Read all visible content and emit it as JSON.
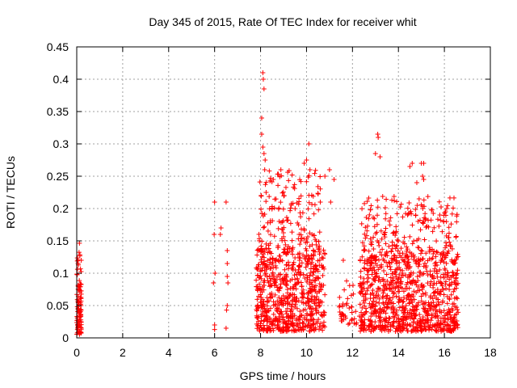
{
  "chart_data": {
    "type": "scatter",
    "title": "Day 345 of 2015, Rate Of TEC Index for receiver whit",
    "xlabel": "GPS time / hours",
    "ylabel": "ROTI / TECUs",
    "xlim": [
      0,
      18
    ],
    "ylim": [
      0,
      0.45
    ],
    "xticks": [
      "0",
      "2",
      "4",
      "6",
      "8",
      "10",
      "12",
      "14",
      "16",
      "18"
    ],
    "yticks": [
      "0",
      "0.05",
      "0.1",
      "0.15",
      "0.2",
      "0.25",
      "0.3",
      "0.35",
      "0.4",
      "0.45"
    ],
    "grid": true,
    "marker": "+",
    "color": "#ff0000",
    "clusters": [
      {
        "x_range": [
          0.0,
          0.2
        ],
        "y_range": [
          0.005,
          0.08
        ],
        "count": 80
      },
      {
        "x_range": [
          0.0,
          0.2
        ],
        "y_range": [
          0.08,
          0.16
        ],
        "count": 20
      },
      {
        "x_range": [
          7.8,
          10.8
        ],
        "y_range": [
          0.01,
          0.14
        ],
        "count": 700
      },
      {
        "x_range": [
          7.9,
          10.6
        ],
        "y_range": [
          0.14,
          0.26
        ],
        "count": 150
      },
      {
        "x_range": [
          12.3,
          16.6
        ],
        "y_range": [
          0.01,
          0.13
        ],
        "count": 900
      },
      {
        "x_range": [
          12.4,
          16.6
        ],
        "y_range": [
          0.13,
          0.22
        ],
        "count": 200
      },
      {
        "x_range": [
          11.4,
          12.2
        ],
        "y_range": [
          0.02,
          0.09
        ],
        "count": 40
      }
    ],
    "points": [
      [
        6.0,
        0.21
      ],
      [
        6.5,
        0.21
      ],
      [
        5.98,
        0.16
      ],
      [
        6.25,
        0.16
      ],
      [
        6.28,
        0.17
      ],
      [
        6.55,
        0.135
      ],
      [
        6.55,
        0.115
      ],
      [
        5.95,
        0.085
      ],
      [
        6.02,
        0.1
      ],
      [
        6.55,
        0.095
      ],
      [
        6.58,
        0.085
      ],
      [
        6.0,
        0.02
      ],
      [
        6.0,
        0.013
      ],
      [
        6.55,
        0.05
      ],
      [
        6.52,
        0.043
      ],
      [
        6.5,
        0.015
      ],
      [
        8.1,
        0.41
      ],
      [
        8.12,
        0.4
      ],
      [
        8.15,
        0.385
      ],
      [
        8.05,
        0.34
      ],
      [
        8.05,
        0.315
      ],
      [
        8.1,
        0.295
      ],
      [
        8.15,
        0.285
      ],
      [
        8.2,
        0.275
      ],
      [
        8.18,
        0.26
      ],
      [
        10.1,
        0.3
      ],
      [
        9.9,
        0.27
      ],
      [
        10.0,
        0.275
      ],
      [
        10.15,
        0.26
      ],
      [
        11.2,
        0.245
      ],
      [
        11.0,
        0.26
      ],
      [
        10.8,
        0.25
      ],
      [
        11.05,
        0.21
      ],
      [
        10.6,
        0.21
      ],
      [
        11.6,
        0.12
      ],
      [
        13.1,
        0.315
      ],
      [
        13.12,
        0.31
      ],
      [
        13.0,
        0.285
      ],
      [
        13.2,
        0.28
      ],
      [
        14.6,
        0.27
      ],
      [
        15.0,
        0.27
      ],
      [
        15.1,
        0.27
      ],
      [
        14.5,
        0.265
      ],
      [
        15.05,
        0.25
      ],
      [
        15.1,
        0.245
      ],
      [
        14.8,
        0.24
      ],
      [
        14.9,
        0.215
      ],
      [
        16.1,
        0.2
      ],
      [
        16.05,
        0.195
      ],
      [
        15.8,
        0.19
      ]
    ]
  }
}
